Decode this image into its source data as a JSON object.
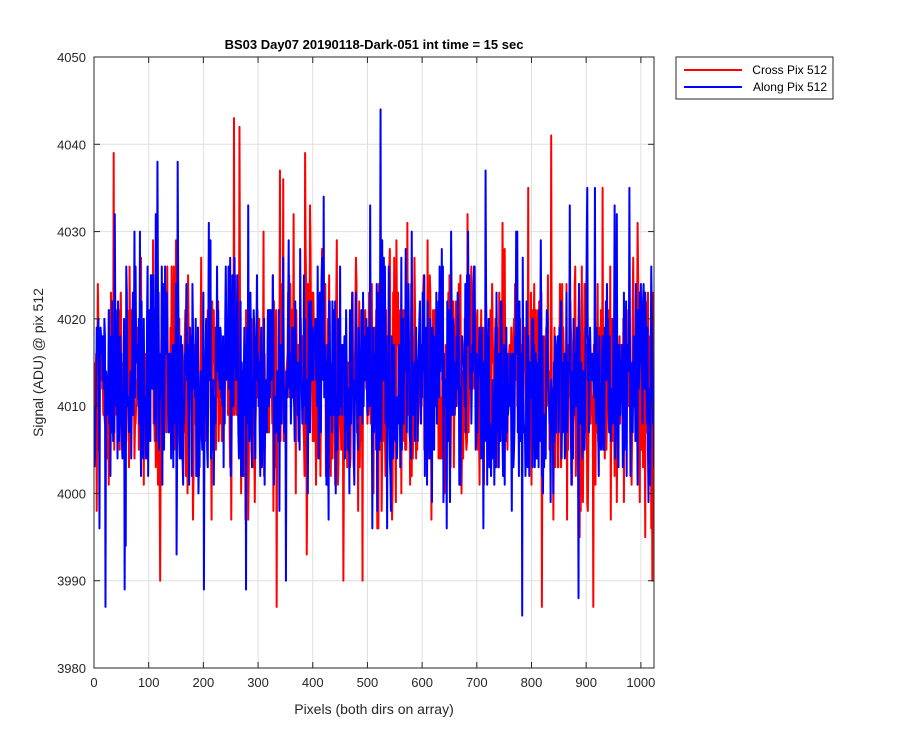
{
  "chart_data": {
    "type": "line",
    "title": "BS03 Day07 20190118-Dark-051 int time = 15 sec",
    "xlabel": "Pixels (both dirs on array)",
    "ylabel": "Signal (ADU) @ pix 512",
    "xlim": [
      0,
      1024
    ],
    "ylim": [
      3980,
      4050
    ],
    "xticks": [
      0,
      100,
      200,
      300,
      400,
      500,
      600,
      700,
      800,
      900,
      1000
    ],
    "yticks": [
      3980,
      3990,
      4000,
      4010,
      4020,
      4030,
      4040,
      4050
    ],
    "grid": true,
    "legend_position": "outside-top-right",
    "colors": {
      "cross": "#ff0000",
      "along": "#0000ff",
      "axis": "#262626",
      "grid": "#dfdfdf"
    },
    "series": [
      {
        "name": "Cross Pix 512",
        "color": "#ff0000",
        "mean": 4013,
        "std": 7,
        "n_points": 1024,
        "extremes": [
          {
            "x": 35,
            "y": 4039
          },
          {
            "x": 120,
            "y": 3990
          },
          {
            "x": 255,
            "y": 4043
          },
          {
            "x": 265,
            "y": 4042
          },
          {
            "x": 333,
            "y": 3987
          },
          {
            "x": 339,
            "y": 4037
          },
          {
            "x": 345,
            "y": 4036
          },
          {
            "x": 385,
            "y": 4039
          },
          {
            "x": 455,
            "y": 3990
          },
          {
            "x": 490,
            "y": 3990
          },
          {
            "x": 818,
            "y": 3987
          },
          {
            "x": 835,
            "y": 4041
          },
          {
            "x": 912,
            "y": 3987
          },
          {
            "x": 1020,
            "y": 3990
          }
        ]
      },
      {
        "name": "Along Pix 512",
        "color": "#0000ff",
        "mean": 4013,
        "std": 7,
        "n_points": 1024,
        "extremes": [
          {
            "x": 20,
            "y": 3987
          },
          {
            "x": 55,
            "y": 3989
          },
          {
            "x": 115,
            "y": 4038
          },
          {
            "x": 152,
            "y": 4038
          },
          {
            "x": 200,
            "y": 3989
          },
          {
            "x": 277,
            "y": 3989
          },
          {
            "x": 350,
            "y": 3990
          },
          {
            "x": 523,
            "y": 4044
          },
          {
            "x": 715,
            "y": 4037
          },
          {
            "x": 782,
            "y": 3986
          },
          {
            "x": 885,
            "y": 3988
          },
          {
            "x": 915,
            "y": 4035
          }
        ]
      }
    ]
  }
}
